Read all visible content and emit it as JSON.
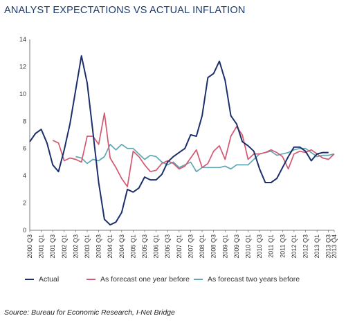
{
  "title": "ANALYST EXPECTATIONS VS ACTUAL INFLATION",
  "source": "Source: Bureau for Economic Research, I-Net Bridge",
  "colors": {
    "actual": "#1c2f6b",
    "one_year": "#d35872",
    "two_years": "#5fa8b3",
    "title": "#1b3a6b",
    "axis": "#333333"
  },
  "legend": {
    "actual": "Actual",
    "one_year": "As forecast one year before",
    "two_years": "As forecast two years before"
  },
  "chart_data": {
    "type": "line",
    "title": "ANALYST EXPECTATIONS VS ACTUAL INFLATION",
    "xlabel": "",
    "ylabel": "",
    "ylim": [
      0,
      14
    ],
    "yticks": [
      0,
      2,
      4,
      6,
      8,
      10,
      12,
      14
    ],
    "grid": false,
    "legend_position": "bottom",
    "categories": [
      "2000 Q3",
      "2000 Q4",
      "2001 Q1",
      "2001 Q2",
      "2001 Q3",
      "2001 Q4",
      "2002 Q1",
      "2002 Q2",
      "2002 Q3",
      "2002 Q4",
      "2003 Q1",
      "2003 Q2",
      "2003 Q3",
      "2003 Q4",
      "2004 Q1",
      "2004 Q2",
      "2004 Q3",
      "2004 Q4",
      "2005 Q1",
      "2005 Q2",
      "2005 Q3",
      "2005 Q4",
      "2006 Q1",
      "2006 Q2",
      "2006 Q3",
      "2006 Q4",
      "2007 Q1",
      "2007 Q2",
      "2007 Q3",
      "2007 Q4",
      "2008 Q1",
      "2008 Q2",
      "2008 Q3",
      "2008 Q4",
      "2009 Q1",
      "2009 Q2",
      "2009 Q3",
      "2009 Q4",
      "2010 Q1",
      "2010 Q2",
      "2010 Q3",
      "2010 Q4",
      "2011 Q1",
      "2011 Q2",
      "2011 Q3",
      "2011 Q4",
      "2012 Q1",
      "2012 Q2",
      "2012 Q3",
      "2012 Q4",
      "2013 Q1",
      "2013 Q2",
      "2013 Q3",
      "2013 Q4"
    ],
    "tick_labels": [
      "2000 Q3",
      "2001 Q1",
      "2001 Q3",
      "2002 Q1",
      "2002 Q3",
      "2003 Q1",
      "2003 Q3",
      "2004 Q1",
      "2004 Q3",
      "2005 Q1",
      "2005 Q3",
      "2006 Q1",
      "2006 Q3",
      "2007 Q1",
      "2007 Q3",
      "2008 Q1",
      "2008 Q3",
      "2009 Q1",
      "2009 Q3",
      "2010 Q1",
      "2010 Q3",
      "2011 Q1",
      "2011 Q3",
      "2012 Q1",
      "2012 Q3",
      "2013 Q1",
      "2013 Q3",
      "2013 Q4"
    ],
    "series": [
      {
        "name": "Actual",
        "color_key": "actual",
        "values": [
          6.5,
          7.1,
          7.4,
          6.4,
          4.8,
          4.3,
          5.9,
          7.8,
          10.3,
          12.8,
          10.8,
          7.2,
          3.5,
          0.8,
          0.4,
          0.6,
          1.3,
          3.0,
          2.8,
          3.1,
          3.9,
          3.7,
          3.7,
          4.1,
          5.0,
          5.4,
          5.7,
          6.0,
          7.0,
          6.9,
          8.4,
          11.2,
          11.5,
          12.4,
          11.0,
          8.4,
          7.8,
          6.5,
          6.2,
          5.8,
          4.5,
          3.5,
          3.5,
          3.8,
          4.6,
          5.4,
          6.1,
          6.1,
          5.8,
          5.1,
          5.6,
          5.7,
          5.7,
          null
        ]
      },
      {
        "name": "As forecast one year before",
        "color_key": "one_year",
        "values": [
          null,
          null,
          null,
          null,
          6.6,
          6.4,
          5.1,
          5.3,
          5.2,
          5.0,
          6.9,
          6.9,
          6.3,
          8.6,
          5.3,
          4.6,
          3.8,
          3.2,
          5.8,
          5.4,
          4.8,
          4.3,
          4.4,
          4.9,
          5.1,
          4.9,
          4.5,
          4.7,
          5.3,
          5.9,
          4.6,
          4.9,
          5.8,
          6.2,
          5.2,
          6.9,
          7.6,
          7.0,
          5.2,
          5.6,
          5.6,
          5.7,
          5.9,
          5.7,
          5.4,
          4.5,
          5.6,
          5.8,
          5.7,
          5.9,
          5.6,
          5.3,
          5.2,
          5.6
        ]
      },
      {
        "name": "As forecast two years before",
        "color_key": "two_years",
        "values": [
          null,
          null,
          null,
          null,
          null,
          null,
          null,
          null,
          5.4,
          5.3,
          4.9,
          5.2,
          5.1,
          5.4,
          6.3,
          5.9,
          6.3,
          6.0,
          6.0,
          5.6,
          5.2,
          5.5,
          5.4,
          5.0,
          4.8,
          5.0,
          4.6,
          4.8,
          5.0,
          4.3,
          4.6,
          4.6,
          4.6,
          4.6,
          4.7,
          4.5,
          4.8,
          4.8,
          4.8,
          5.2,
          5.6,
          5.7,
          5.8,
          5.5,
          5.6,
          5.7,
          5.9,
          6.0,
          6.0,
          5.7,
          5.4,
          5.5,
          5.5,
          5.6
        ]
      }
    ]
  }
}
